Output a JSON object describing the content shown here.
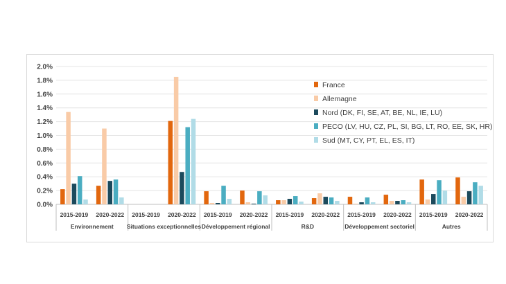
{
  "chart_data": {
    "type": "bar",
    "title": "",
    "xlabel": "",
    "ylabel": "",
    "ylim": [
      0,
      0.02
    ],
    "y_ticks": [
      "0.0%",
      "0.2%",
      "0.4%",
      "0.6%",
      "0.8%",
      "1.0%",
      "1.2%",
      "1.4%",
      "1.6%",
      "1.8%",
      "2.0%"
    ],
    "grid": true,
    "legend_position": "top-right",
    "groups": [
      "Environnement",
      "Situations exceptionnelles",
      "Développement régional",
      "R&D",
      "Développement sectoriel",
      "Autres"
    ],
    "periods": [
      "2015-2019",
      "2020-2022"
    ],
    "categories": [
      "Environnement 2015-2019",
      "Environnement 2020-2022",
      "Situations exceptionnelles 2015-2019",
      "Situations exceptionnelles 2020-2022",
      "Développement régional 2015-2019",
      "Développement régional 2020-2022",
      "R&D 2015-2019",
      "R&D 2020-2022",
      "Développement sectoriel 2015-2019",
      "Développement sectoriel 2020-2022",
      "Autres 2015-2019",
      "Autres 2020-2022"
    ],
    "series": [
      {
        "name": "France",
        "color": "#e2670e",
        "values": [
          0.0022,
          0.0027,
          0,
          0.0121,
          0.0019,
          0.002,
          0.0006,
          0.0009,
          0.0011,
          0.0014,
          0.0036,
          0.0039
        ]
      },
      {
        "name": "Allemagne",
        "color": "#f9cba7",
        "values": [
          0.0134,
          0.011,
          0,
          0.0185,
          0.0002,
          0.0003,
          0.0006,
          0.0016,
          0.0001,
          0.0005,
          0.0007,
          0.0011
        ]
      },
      {
        "name": "Nord (DK, FI, SE, AT, BE, NL, IE, LU)",
        "color": "#1c4a5c",
        "values": [
          0.003,
          0.0034,
          0,
          0.0047,
          0.0002,
          0.0001,
          0.0008,
          0.0011,
          0.0003,
          0.0005,
          0.0015,
          0.0019
        ]
      },
      {
        "name": "PECO (LV, HU, CZ, PL, SI, BG, LT, RO, EE, SK, HR)",
        "color": "#4aadc1",
        "values": [
          0.0041,
          0.0036,
          0,
          0.0112,
          0.0027,
          0.0019,
          0.0012,
          0.001,
          0.001,
          0.0006,
          0.0035,
          0.0032
        ]
      },
      {
        "name": "Sud (MT, CY, PT, EL, ES, IT)",
        "color": "#b1dce7",
        "values": [
          0.0007,
          0.001,
          0,
          0.0124,
          0.0008,
          0.0013,
          0.0004,
          0.0005,
          0.0003,
          0.0003,
          0.002,
          0.0027
        ]
      }
    ]
  }
}
